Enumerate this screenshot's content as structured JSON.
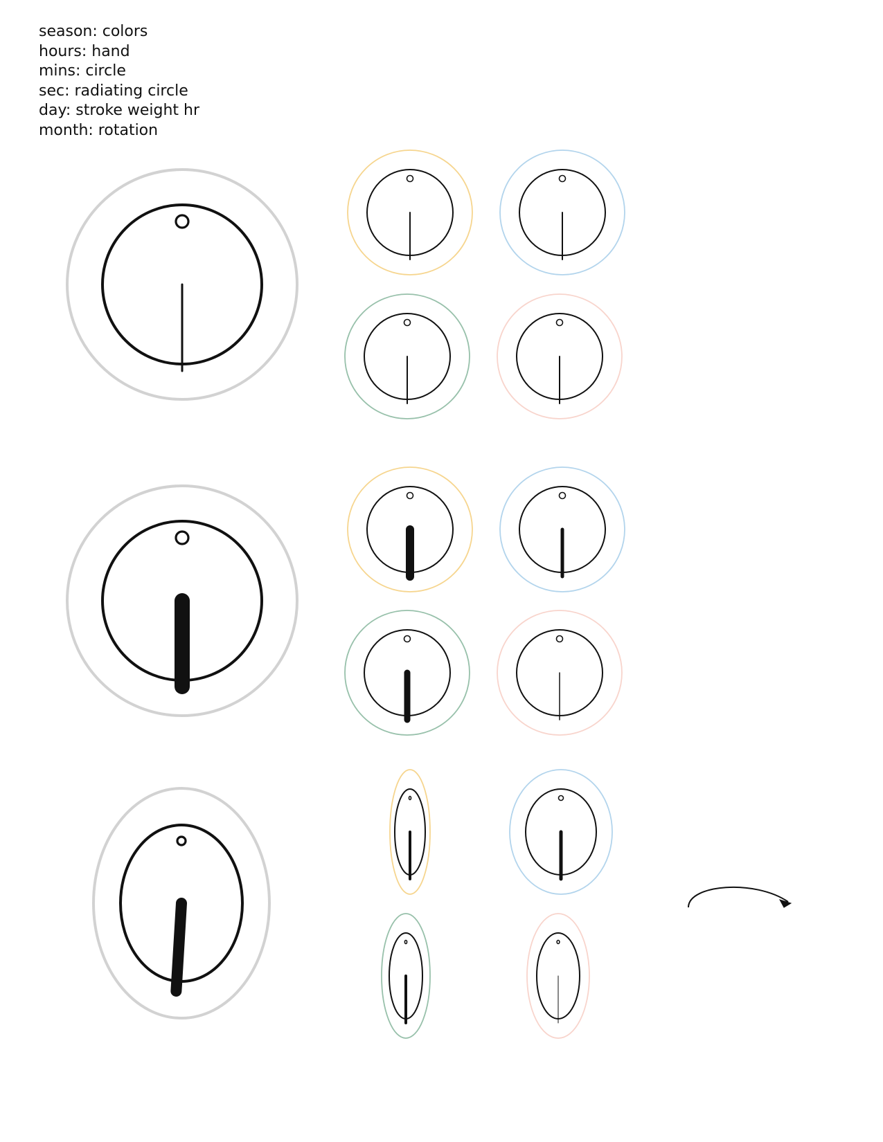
{
  "legend": [
    "season: colors",
    "hours: hand",
    "mins: circle",
    "sec: radiating circle",
    "day: stroke weight hr",
    "month: rotation"
  ],
  "colors": {
    "ink": "#111111",
    "large_outer_ring": "#d2d2d2",
    "season_yellow": "#f6d58e",
    "season_blue": "#b2d4ec",
    "season_green": "#97c0aa",
    "season_pink": "#f8d4cc"
  },
  "rows": [
    {
      "name": "hour-hand-row",
      "main": {
        "outer": "large_outer_ring",
        "hand_weight": 3
      },
      "small": [
        {
          "outer": "season_yellow",
          "hand_weight": 2
        },
        {
          "outer": "season_blue",
          "hand_weight": 2
        },
        {
          "outer": "season_green",
          "hand_weight": 2
        },
        {
          "outer": "season_pink",
          "hand_weight": 2
        }
      ]
    },
    {
      "name": "stroke-weight-row",
      "main": {
        "outer": "large_outer_ring",
        "hand_weight": 22
      },
      "small": [
        {
          "outer": "season_yellow",
          "hand_weight": 12
        },
        {
          "outer": "season_blue",
          "hand_weight": 5
        },
        {
          "outer": "season_green",
          "hand_weight": 9
        },
        {
          "outer": "season_pink",
          "hand_weight": 1.5
        }
      ]
    },
    {
      "name": "rotation-row",
      "main": {
        "outer": "large_outer_ring",
        "hand_weight": 16
      },
      "small": [
        {
          "outer": "season_yellow",
          "hand_weight": 4
        },
        {
          "outer": "season_blue",
          "hand_weight": 5
        },
        {
          "outer": "season_green",
          "hand_weight": 4
        },
        {
          "outer": "season_pink",
          "hand_weight": 1
        }
      ]
    }
  ],
  "rotation_arrow": {
    "icon": "curved-arrow-icon"
  }
}
